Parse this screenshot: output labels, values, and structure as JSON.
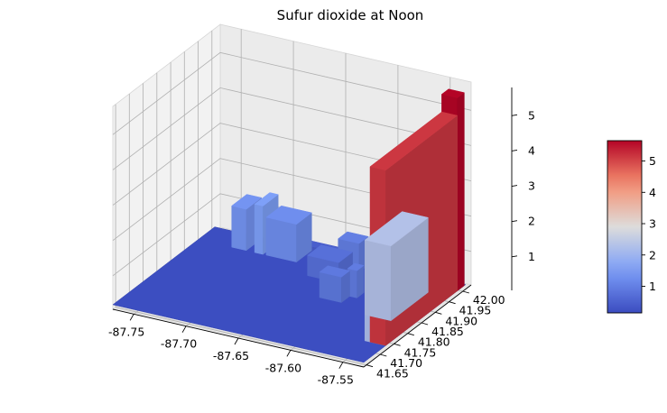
{
  "chart_data": {
    "type": "surface3d",
    "title": "Sufur dioxide at Noon",
    "xlabel": "",
    "ylabel": "",
    "zlabel": "",
    "x_ticks": [
      "-87.75",
      "-87.70",
      "-87.65",
      "-87.60",
      "-87.55"
    ],
    "y_ticks": [
      "41.65",
      "41.70",
      "41.75",
      "41.80",
      "41.85",
      "41.90",
      "41.95",
      "42.00"
    ],
    "z_ticks": [
      "1",
      "2",
      "3",
      "4",
      "5"
    ],
    "xlim": [
      -87.77,
      -87.53
    ],
    "ylim": [
      41.64,
      42.03
    ],
    "zlim": [
      0.05,
      5.8
    ],
    "colormap": "coolwarm",
    "colorbar": {
      "range": [
        0.15,
        5.65
      ],
      "ticks": [
        "1",
        "2",
        "3",
        "4",
        "5"
      ]
    },
    "surface": [
      {
        "x0": -87.77,
        "x1": -87.53,
        "y0": 41.64,
        "y1": 42.01,
        "z": 0.18
      },
      {
        "x0": -87.738,
        "x1": -87.724,
        "y0": 41.95,
        "y1": 42.005,
        "z": 1.35
      },
      {
        "x0": -87.716,
        "x1": -87.708,
        "y0": 41.95,
        "y1": 42.005,
        "z": 1.55
      },
      {
        "x0": -87.705,
        "x1": -87.676,
        "y0": 41.95,
        "y1": 42.005,
        "z": 1.25
      },
      {
        "x0": -87.7,
        "x1": -87.64,
        "y0": 41.985,
        "y1": 42.005,
        "z": 0.45
      },
      {
        "x0": -87.655,
        "x1": -87.625,
        "y0": 41.91,
        "y1": 41.96,
        "z": 0.75
      },
      {
        "x0": -87.64,
        "x1": -87.62,
        "y0": 41.965,
        "y1": 41.998,
        "z": 1.0
      },
      {
        "x0": -87.625,
        "x1": -87.604,
        "y0": 41.84,
        "y1": 41.87,
        "z": 0.9
      },
      {
        "x0": -87.606,
        "x1": -87.597,
        "y0": 41.87,
        "y1": 41.895,
        "z": 0.95
      },
      {
        "x0": -87.575,
        "x1": -87.55,
        "y0": 41.815,
        "y1": 41.95,
        "z": 2.3
      },
      {
        "x0": -87.55,
        "x1": -87.53,
        "y0": 41.72,
        "y1": 42.005,
        "z": 2.2
      },
      {
        "x0": -87.545,
        "x1": -87.53,
        "y0": 41.72,
        "y1": 41.98,
        "z": 5.15
      },
      {
        "x0": -87.545,
        "x1": -87.53,
        "y0": 41.98,
        "y1": 42.005,
        "z": 5.65
      }
    ]
  }
}
